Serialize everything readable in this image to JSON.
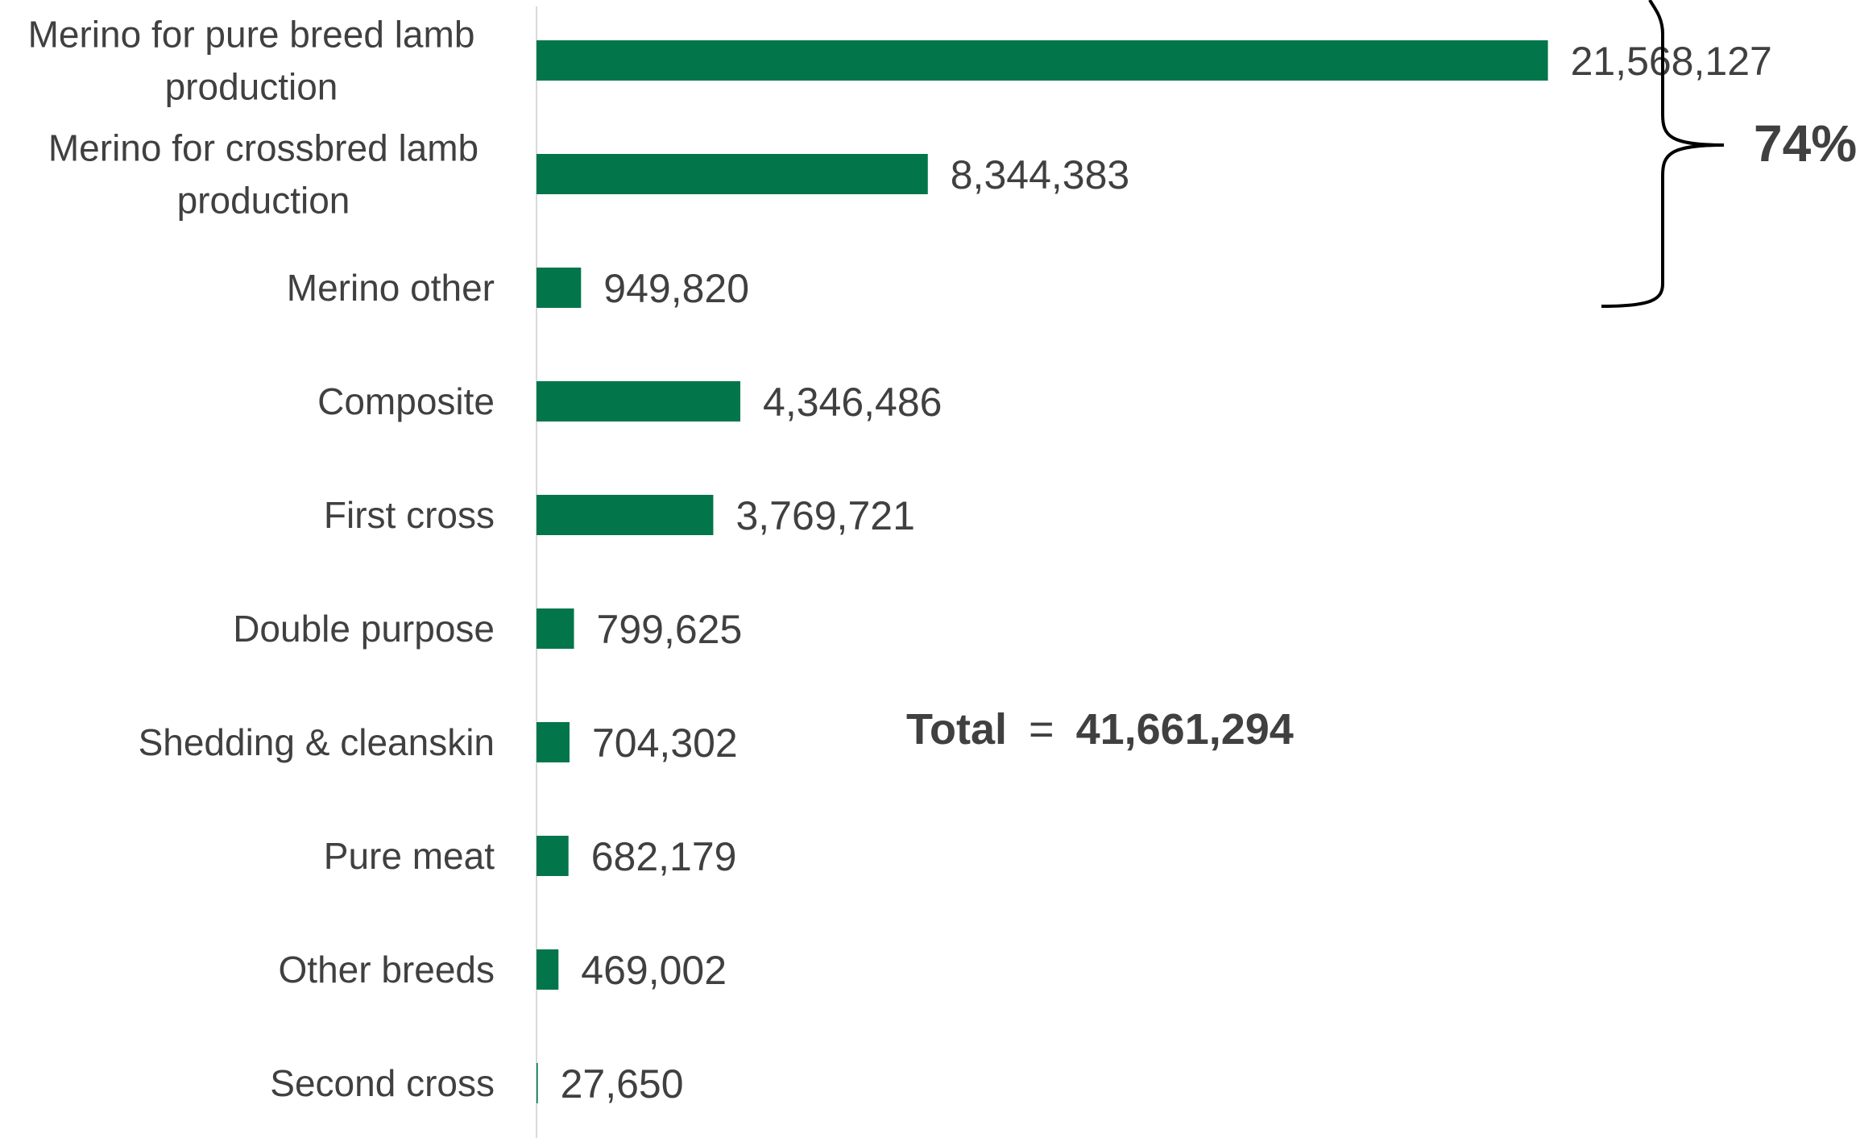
{
  "chart_data": {
    "type": "bar",
    "orientation": "horizontal",
    "categories": [
      [
        "Merino for pure breed lamb",
        "production"
      ],
      [
        "Merino for crossbred lamb",
        "production"
      ],
      [
        "Merino other"
      ],
      [
        "Composite"
      ],
      [
        "First cross"
      ],
      [
        "Double purpose"
      ],
      [
        "Shedding & cleanskin"
      ],
      [
        "Pure meat"
      ],
      [
        "Other breeds"
      ],
      [
        "Second cross"
      ]
    ],
    "values": [
      21568127,
      8344383,
      949820,
      4346486,
      3769721,
      799625,
      704302,
      682179,
      469002,
      27650
    ],
    "data_labels": [
      "21,568,127",
      "8,344,383",
      "949,820",
      "4,346,486",
      "3,769,721",
      "799,625",
      "704,302",
      "682,179",
      "469,002",
      "27,650"
    ],
    "xlim": [
      0,
      28000000
    ],
    "grid": false,
    "legend": "none",
    "bar_color": "#02764a",
    "text_color": "#404040",
    "annotations": {
      "total_label": "Total",
      "total_equals": "=",
      "total_value": "41,661,294",
      "bracket_percent": "74%",
      "bracket_covers_categories": [
        0,
        1,
        2
      ]
    },
    "title": "",
    "xlabel": "",
    "ylabel": ""
  }
}
